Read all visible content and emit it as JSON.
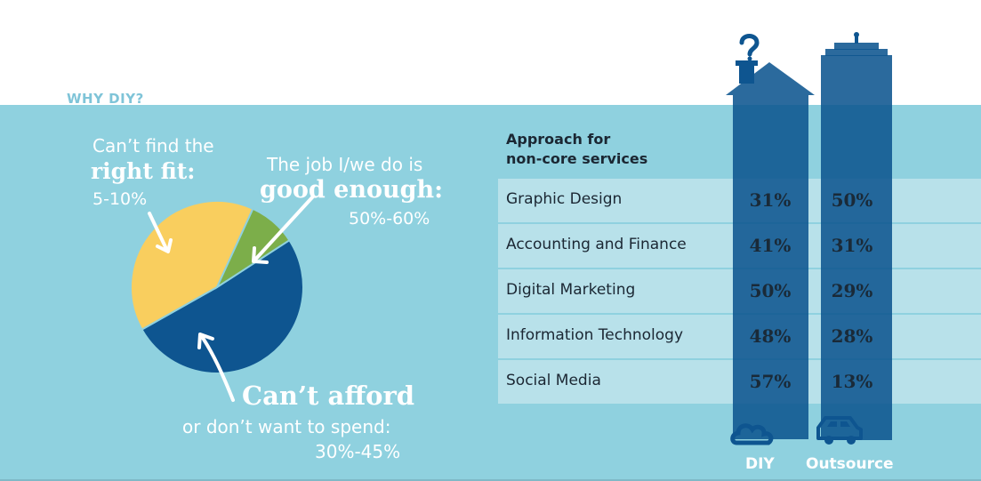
{
  "section_heading": "WHY DIY?",
  "pie_labels": {
    "fit_line1": "Can’t find the",
    "fit_bold": "right fit:",
    "fit_range": "5-10%",
    "good_line1": "The job I/we do is",
    "good_bold": "good enough:",
    "good_range": "50%-60%",
    "afford_bold": "Can’t afford",
    "afford_line2": "or don’t want to spend:",
    "afford_range": "30%-45%"
  },
  "table": {
    "header_line1": "Approach for",
    "header_line2": "non-core services",
    "column_labels": [
      "DIY",
      "Outsource"
    ]
  },
  "colors": {
    "panel": "#8fd1df",
    "pie_good_enough": "#0e5590",
    "pie_cant_afford": "#f9ce5e",
    "pie_right_fit": "#7cae4a",
    "building": "#0e5590",
    "row": "#b8e1ea"
  },
  "icons": {
    "diy_chimney": "question-mark-smoke-icon",
    "diy_bottom": "cloud-icon",
    "outsource_bottom": "car-icon"
  },
  "chart_data": [
    {
      "type": "pie",
      "title": "",
      "slices": [
        {
          "label": "good enough",
          "range": "50%-60%",
          "value": 51
        },
        {
          "label": "Can’t afford or don’t want to spend",
          "range": "30%-45%",
          "value": 40
        },
        {
          "label": "Can’t find the right fit",
          "range": "5-10%",
          "value": 9
        }
      ]
    },
    {
      "type": "table",
      "title": "Approach for non-core services",
      "categories": [
        "Graphic Design",
        "Accounting and Finance",
        "Digital Marketing",
        "Information Technology",
        "Social Media"
      ],
      "series": [
        {
          "name": "DIY",
          "values": [
            "31%",
            "41%",
            "50%",
            "48%",
            "57%"
          ]
        },
        {
          "name": "Outsource",
          "values": [
            "50%",
            "31%",
            "29%",
            "28%",
            "13%"
          ]
        }
      ]
    }
  ]
}
